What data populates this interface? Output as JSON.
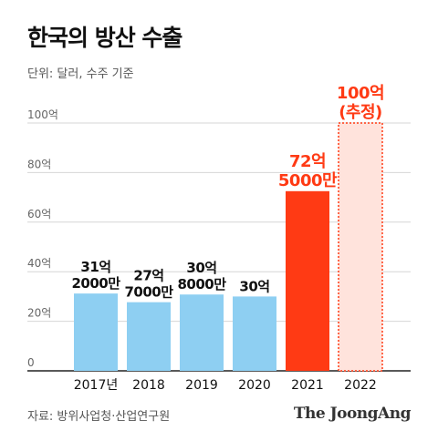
{
  "title": "한국의 방산 수출",
  "subtitle": "단위: 달러, 수주 기준",
  "source": "자료: 방위사업청·산업연구원",
  "logo": "The JoongAng",
  "colors": {
    "normal": "#8ecff2",
    "highlight": "#ff3a14",
    "estimate_fill": "#ffe3dc",
    "estimate_stroke": "#ff3a14",
    "label_normal": "#111111",
    "label_highlight": "#ff3a14"
  },
  "chart_data": {
    "type": "bar",
    "title": "한국의 방산 수출",
    "ylabel": "단위: 달러, 수주 기준",
    "ylim": [
      0,
      100
    ],
    "y_ticks": [
      "0",
      "20억",
      "40억",
      "60억",
      "80억",
      "100억"
    ],
    "grid": true,
    "categories": [
      "2017년",
      "2018",
      "2019",
      "2020",
      "2021",
      "2022"
    ],
    "values": [
      31.2,
      27.7,
      30.8,
      30,
      72.5,
      100
    ],
    "data_labels": [
      [
        "31억",
        "2000만"
      ],
      [
        "27억",
        "7000만"
      ],
      [
        "30억",
        "8000만"
      ],
      [
        "30억"
      ],
      [
        "72억",
        "5000만"
      ],
      [
        "100억",
        "(추정)"
      ]
    ],
    "styles": [
      "normal",
      "normal",
      "normal",
      "normal",
      "highlight",
      "estimate"
    ]
  }
}
